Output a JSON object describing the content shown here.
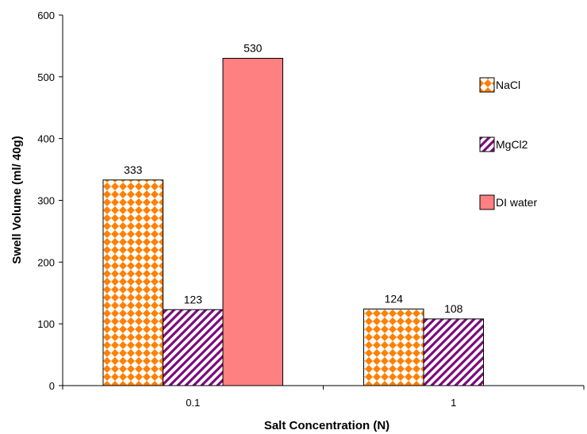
{
  "chart_data": {
    "type": "bar",
    "categories": [
      "0.1",
      "1"
    ],
    "series": [
      {
        "name": "NaCl",
        "values": [
          333,
          124
        ],
        "pattern": "diamond-checker",
        "color": "#ff8000",
        "bg": "#ffffff"
      },
      {
        "name": "MgCl2",
        "values": [
          123,
          108
        ],
        "pattern": "diagonal-stripes",
        "color": "#7b0d7b",
        "bg": "#ffffff"
      },
      {
        "name": "DI water",
        "values": [
          530,
          null
        ],
        "pattern": "solid",
        "color": "#ff8080"
      }
    ],
    "data_labels": [
      [
        "333",
        "124"
      ],
      [
        "123",
        "108"
      ],
      [
        "530",
        ""
      ]
    ],
    "xlabel": "Salt Concentration (N)",
    "ylabel": "Swell Volume (ml/ 40g)",
    "ylim": [
      0,
      600
    ],
    "yticks": [
      "0",
      "100",
      "200",
      "300",
      "400",
      "500",
      "600"
    ],
    "grid": false,
    "legend_position": "right"
  }
}
